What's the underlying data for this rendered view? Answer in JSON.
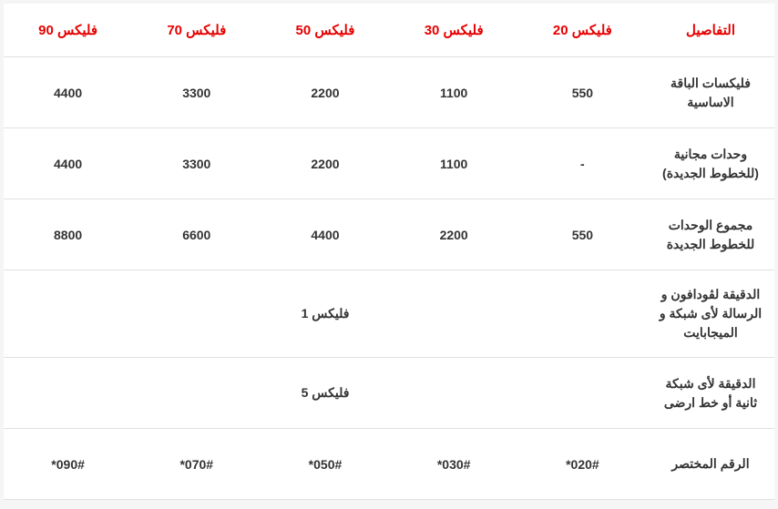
{
  "table": {
    "headers": [
      "فليكس 90",
      "فليكس 70",
      "فليكس 50",
      "فليكس 30",
      "فليكس 20",
      "التفاصيل"
    ],
    "rows": [
      {
        "label": "فليكسات الباقة الاساسية",
        "cells": [
          "4400",
          "3300",
          "2200",
          "1100",
          "550"
        ]
      },
      {
        "label": "وحدات مجانية (للخطوط الجديدة)",
        "cells": [
          "4400",
          "3300",
          "2200",
          "1100",
          "-"
        ]
      },
      {
        "label": "مجموع الوحدات للخطوط الجديدة",
        "cells": [
          "8800",
          "6600",
          "4400",
          "2200",
          "550"
        ]
      },
      {
        "label": "الدقيقة لڤودافون و الرسالة لأى شبكة و الميجابايت",
        "merged": "1 فليكس"
      },
      {
        "label": "الدقيقة لأى شبكة ثانية أو خط ارضى",
        "merged": "5 فليكس"
      },
      {
        "label": "الرقم المختصر",
        "cells": [
          "*090#",
          "*070#",
          "*050#",
          "*030#",
          "*020#"
        ]
      }
    ],
    "colors": {
      "header": "#e60000",
      "text": "#333333",
      "border": "#e0e0e0",
      "bg": "#ffffff"
    },
    "fontsize": {
      "header": 15,
      "cell": 14
    }
  }
}
